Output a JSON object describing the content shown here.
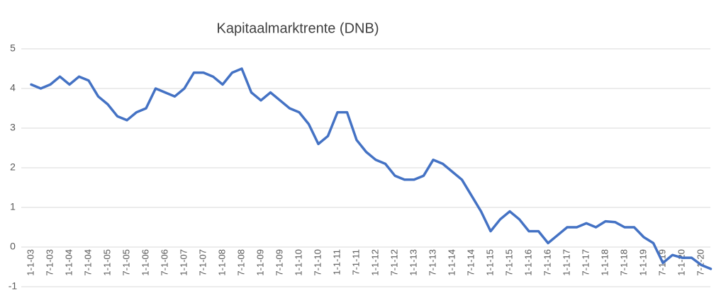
{
  "chart_data": {
    "type": "line",
    "title": "Kapitaalmarktrente (DNB)",
    "categories": [
      "1-1-03",
      null,
      "7-1-03",
      null,
      "1-1-04",
      null,
      "7-1-04",
      null,
      "1-1-05",
      null,
      "7-1-05",
      null,
      "1-1-06",
      null,
      "7-1-06",
      null,
      "1-1-07",
      null,
      "7-1-07",
      null,
      "1-1-08",
      null,
      "7-1-08",
      null,
      "1-1-09",
      null,
      "7-1-09",
      null,
      "1-1-10",
      null,
      "7-1-10",
      null,
      "1-1-11",
      null,
      "7-1-11",
      null,
      "1-1-12",
      null,
      "7-1-12",
      null,
      "1-1-13",
      null,
      "7-1-13",
      null,
      "1-1-14",
      null,
      "7-1-14",
      null,
      "1-1-15",
      null,
      "7-1-15",
      null,
      "1-1-16",
      null,
      "7-1-16",
      null,
      "1-1-17",
      null,
      "7-1-17",
      null,
      "1-1-18",
      null,
      "7-1-18",
      null,
      "1-1-19",
      null,
      "7-1-19",
      null,
      "1-1-20",
      null,
      "7-1-20",
      null
    ],
    "series": [
      {
        "color": "#4472c4",
        "values": [
          4.1,
          4.0,
          4.1,
          4.3,
          4.1,
          4.3,
          4.2,
          3.8,
          3.6,
          3.3,
          3.2,
          3.4,
          3.5,
          4.0,
          3.9,
          3.8,
          4.0,
          4.4,
          4.4,
          4.3,
          4.1,
          4.4,
          4.5,
          3.9,
          3.7,
          3.9,
          3.7,
          3.5,
          3.4,
          3.1,
          2.6,
          2.8,
          3.4,
          3.4,
          2.7,
          2.4,
          2.2,
          2.1,
          1.8,
          1.7,
          1.7,
          1.8,
          2.2,
          2.1,
          1.9,
          1.7,
          1.3,
          0.9,
          0.4,
          0.7,
          0.9,
          0.7,
          0.4,
          0.4,
          0.1,
          0.3,
          0.5,
          0.5,
          0.6,
          0.5,
          0.65,
          0.63,
          0.5,
          0.5,
          0.25,
          0.1,
          -0.4,
          -0.2,
          -0.27,
          -0.27,
          -0.45,
          -0.55
        ]
      }
    ],
    "ylim": [
      -1,
      5
    ],
    "yticks": [
      -1,
      0,
      1,
      2,
      3,
      4,
      5
    ],
    "grid": true
  }
}
